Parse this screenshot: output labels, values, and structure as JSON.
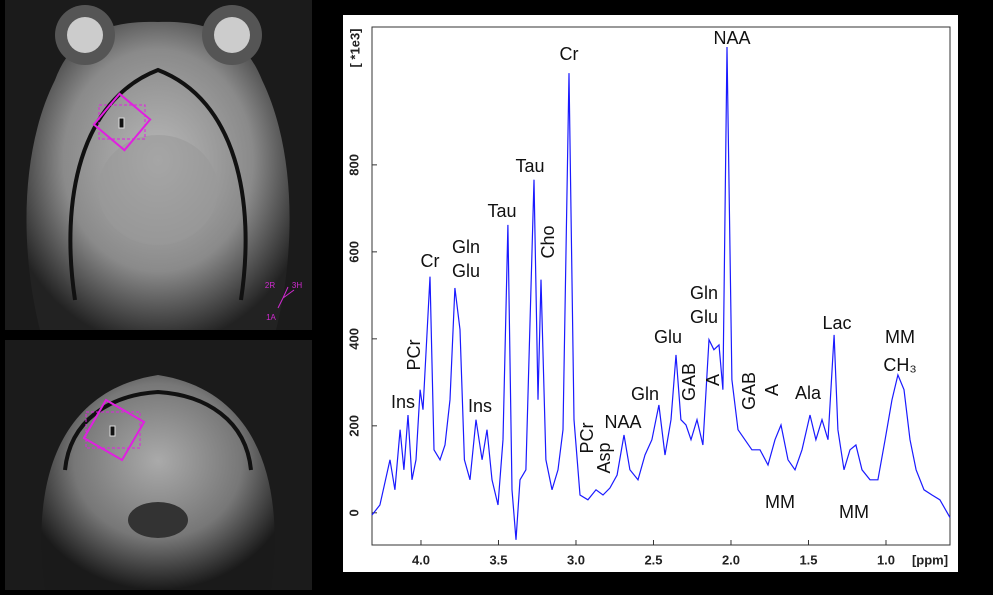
{
  "images": [
    {
      "labels": [
        "2R",
        "3H",
        "1A"
      ]
    },
    {
      "labels": []
    }
  ],
  "chart_data": {
    "type": "line",
    "y_axis_label": "[ *1e3]",
    "x_axis_label": "[ppm]",
    "xlim": [
      4.316,
      0.587
    ],
    "ylim": [
      -74,
      1117
    ],
    "xticks": [
      {
        "value": 4,
        "label": "4.0"
      },
      {
        "value": 3.5,
        "label": "3.5"
      },
      {
        "value": 3,
        "label": "3.0"
      },
      {
        "value": 2.5,
        "label": "2.5"
      },
      {
        "value": 2,
        "label": "2.0"
      },
      {
        "value": 1.5,
        "label": "1.5"
      },
      {
        "value": 1,
        "label": "1.0"
      }
    ],
    "yticks": [
      0,
      200,
      400,
      600,
      800
    ],
    "color": "#1a1aff",
    "x": [
      4.316,
      4.265,
      4.2,
      4.168,
      4.135,
      4.11,
      4.084,
      4.058,
      4.032,
      4.006,
      3.987,
      3.942,
      3.916,
      3.877,
      3.845,
      3.813,
      3.781,
      3.748,
      3.72,
      3.684,
      3.645,
      3.606,
      3.574,
      3.542,
      3.503,
      3.471,
      3.439,
      3.413,
      3.387,
      3.361,
      3.323,
      3.271,
      3.245,
      3.226,
      3.194,
      3.155,
      3.116,
      3.084,
      3.045,
      3.013,
      2.974,
      2.923,
      2.871,
      2.826,
      2.781,
      2.735,
      2.69,
      2.652,
      2.6,
      2.555,
      2.51,
      2.465,
      2.426,
      2.387,
      2.355,
      2.323,
      2.29,
      2.258,
      2.219,
      2.181,
      2.142,
      2.11,
      2.077,
      2.052,
      2.026,
      1.994,
      1.955,
      1.91,
      1.865,
      1.813,
      1.761,
      1.716,
      1.677,
      1.632,
      1.587,
      1.542,
      1.49,
      1.452,
      1.413,
      1.374,
      1.335,
      1.31,
      1.271,
      1.232,
      1.194,
      1.155,
      1.103,
      1.052,
      1.006,
      0.961,
      0.923,
      0.884,
      0.845,
      0.806,
      0.755,
      0.703,
      0.652,
      0.587
    ],
    "values": [
      -5,
      18,
      122,
      53,
      191,
      99,
      225,
      76,
      122,
      283,
      237,
      543,
      145,
      122,
      156,
      260,
      517,
      421,
      122,
      76,
      214,
      122,
      191,
      76,
      18,
      168,
      662,
      53,
      -62,
      76,
      99,
      766,
      260,
      536,
      122,
      53,
      99,
      191,
      1011,
      214,
      41,
      30,
      53,
      41,
      57,
      87,
      179,
      99,
      76,
      133,
      168,
      248,
      133,
      214,
      363,
      214,
      202,
      168,
      214,
      156,
      398,
      375,
      386,
      283,
      1071,
      306,
      191,
      168,
      145,
      145,
      110,
      168,
      202,
      122,
      99,
      145,
      225,
      168,
      214,
      168,
      409,
      191,
      99,
      145,
      156,
      99,
      76,
      76,
      168,
      260,
      317,
      283,
      168,
      99,
      53,
      41,
      30,
      -11
    ],
    "annotations": [
      "Ins",
      "PCr",
      "Cr",
      "Gln",
      "Glu",
      "Ins",
      "Tau",
      "Tau",
      "Cho",
      "Cr",
      "PCr",
      "Asp",
      "NAA",
      "Gln",
      "Glu",
      "GAB",
      "Gln",
      "Glu",
      "A",
      "NAA",
      "GAB",
      "A",
      "Ala",
      "MM",
      "Lac",
      "MM",
      "MM",
      "CH₃"
    ]
  }
}
